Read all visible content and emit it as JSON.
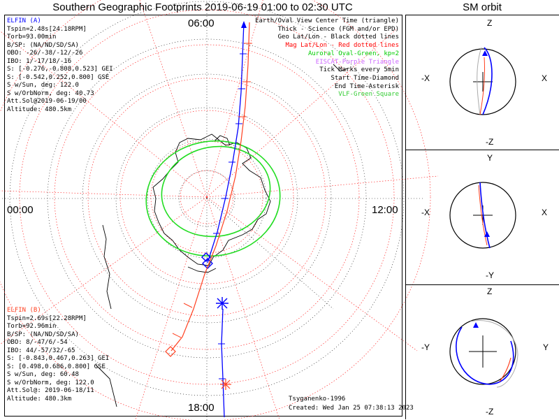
{
  "title": "Southern Geographic Footprints 2019-06-19 01:00 to 02:30 UTC",
  "sm_title": "SM orbit",
  "clock_labels": {
    "top": "06:00",
    "left": "00:00",
    "right": "12:00",
    "bottom": "18:00"
  },
  "elfin_a": {
    "name": "ELFIN (A)",
    "lines": [
      "Tspin=2.48s[24.18RPM]",
      "Torb=93.00min",
      "B/SP: (NA/ND/SD/SA)",
      "OBO: -26/-38/-12/-26",
      "IBO: 1/-17/18/-16",
      "S: [-0.276,-0.808,0.523] GEI",
      "S: [-0.542,0.252,0.800] GSE",
      "S w/Sun, deg: 122.0",
      "S w/OrbNorm, deg: 40.73",
      "Att.Sol@2019-06-19/00",
      "Altitude: 480.5km"
    ]
  },
  "elfin_b": {
    "name": "ELFIN (B)",
    "lines": [
      "Tspin=2.69s[22.28RPM]",
      "Torb=92.96min",
      "B/SP: (NA/ND/SD/SA)",
      "OBO: 8/-47/6/-54",
      "IBO: 44/-57/32/-65",
      "S: [-0.843,0.467,0.263] GEI",
      "S: [0.498,0.686,0.800] GSE",
      "S w/Sun, deg: 60.48",
      "S w/OrbNorm, deg: 122.0",
      "Att.Sol@: 2019-06-18/11",
      "Altitude: 480.3km"
    ]
  },
  "legend": [
    {
      "text": "Earth/Oval View Center Time (triangle)",
      "color": "#000000"
    },
    {
      "text": "Thick - Science (FGM and/or EPD)",
      "color": "#000000"
    },
    {
      "text": "Geo Lat/Lon - Black dotted lines",
      "color": "#000000"
    },
    {
      "text": "Mag Lat/Lon - Red dotted lines",
      "color": "#ff0000"
    },
    {
      "text": "Auroral Oval-Green, kp=2",
      "color": "#00cc00"
    },
    {
      "text": "EISCAT-Purple Triangle",
      "color": "#cc66ff"
    },
    {
      "text": "Tick Marks every 5min",
      "color": "#000000"
    },
    {
      "text": "Start Time-Diamond",
      "color": "#000000"
    },
    {
      "text": "End Time-Asterisk",
      "color": "#000000"
    },
    {
      "text": "VLF-Green Square",
      "color": "#33cc33"
    }
  ],
  "footer_left": "Tsyganenko-1996",
  "footer_created": "Created: Wed Jan 25 07:38:13 2023",
  "colors": {
    "elfin_a": "#0000ff",
    "elfin_b": "#ff4020",
    "oval": "#22dd22",
    "grid_mag": "#ff3030"
  },
  "sm_panels": [
    {
      "top": "Z",
      "bottom": "-Z",
      "left": "-X",
      "right": "X"
    },
    {
      "top": "Y",
      "bottom": "-Y",
      "left": "-X",
      "right": "X"
    },
    {
      "top": "Z",
      "bottom": "-Z",
      "left": "-Y",
      "right": "Y"
    }
  ]
}
